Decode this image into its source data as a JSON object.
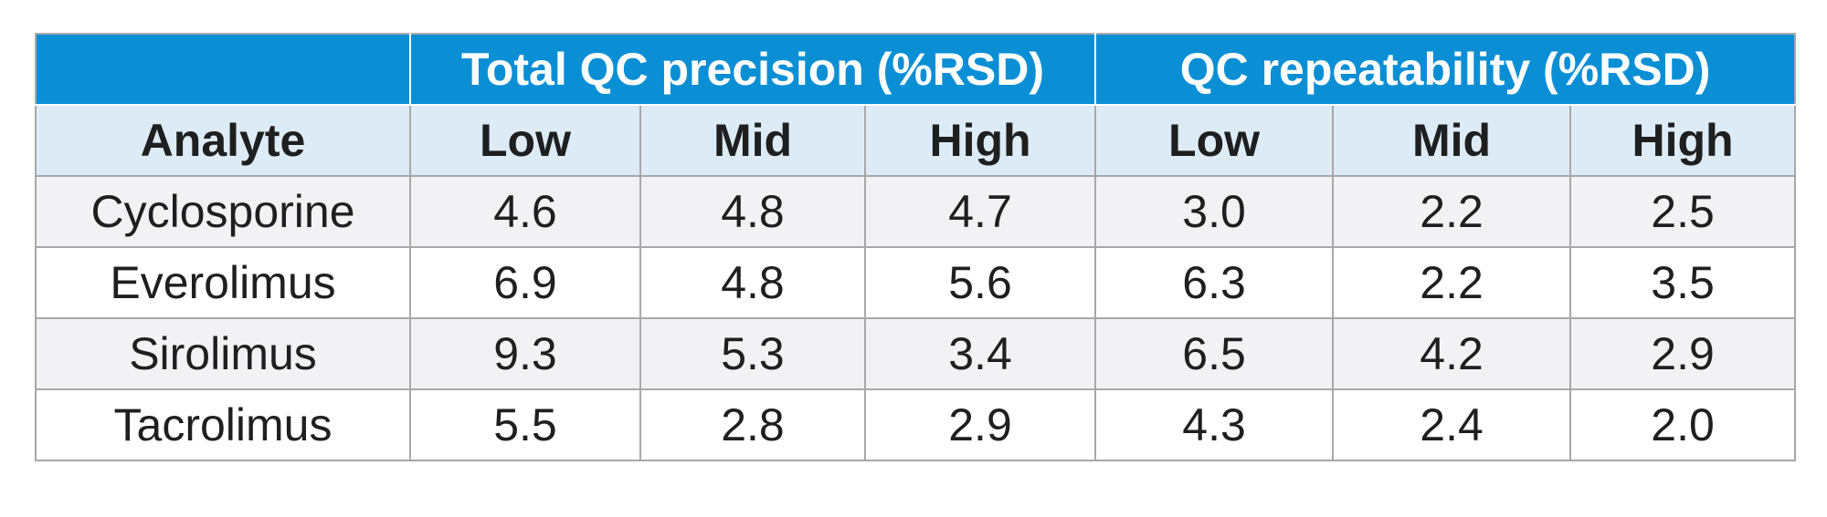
{
  "table": {
    "groups": [
      {
        "label": ""
      },
      {
        "label": "Total QC precision (%RSD)"
      },
      {
        "label": "QC repeatability (%RSD)"
      }
    ],
    "columns": [
      "Analyte",
      "Low",
      "Mid",
      "High",
      "Low",
      "Mid",
      "High"
    ],
    "rows": [
      {
        "analyte": "Cyclosporine",
        "values": [
          "4.6",
          "4.8",
          "4.7",
          "3.0",
          "2.2",
          "2.5"
        ]
      },
      {
        "analyte": "Everolimus",
        "values": [
          "6.9",
          "4.8",
          "5.6",
          "6.3",
          "2.2",
          "3.5"
        ]
      },
      {
        "analyte": "Sirolimus",
        "values": [
          "9.3",
          "5.3",
          "3.4",
          "6.5",
          "4.2",
          "2.9"
        ]
      },
      {
        "analyte": "Tacrolimus",
        "values": [
          "5.5",
          "2.8",
          "2.9",
          "4.3",
          "2.4",
          "2.0"
        ]
      }
    ]
  },
  "colors": {
    "header_blue": "#0a8fd5",
    "subheader_light_blue": "#ddebf7",
    "row_shade": "#f2f2f4",
    "border": "#a8a8a8"
  }
}
